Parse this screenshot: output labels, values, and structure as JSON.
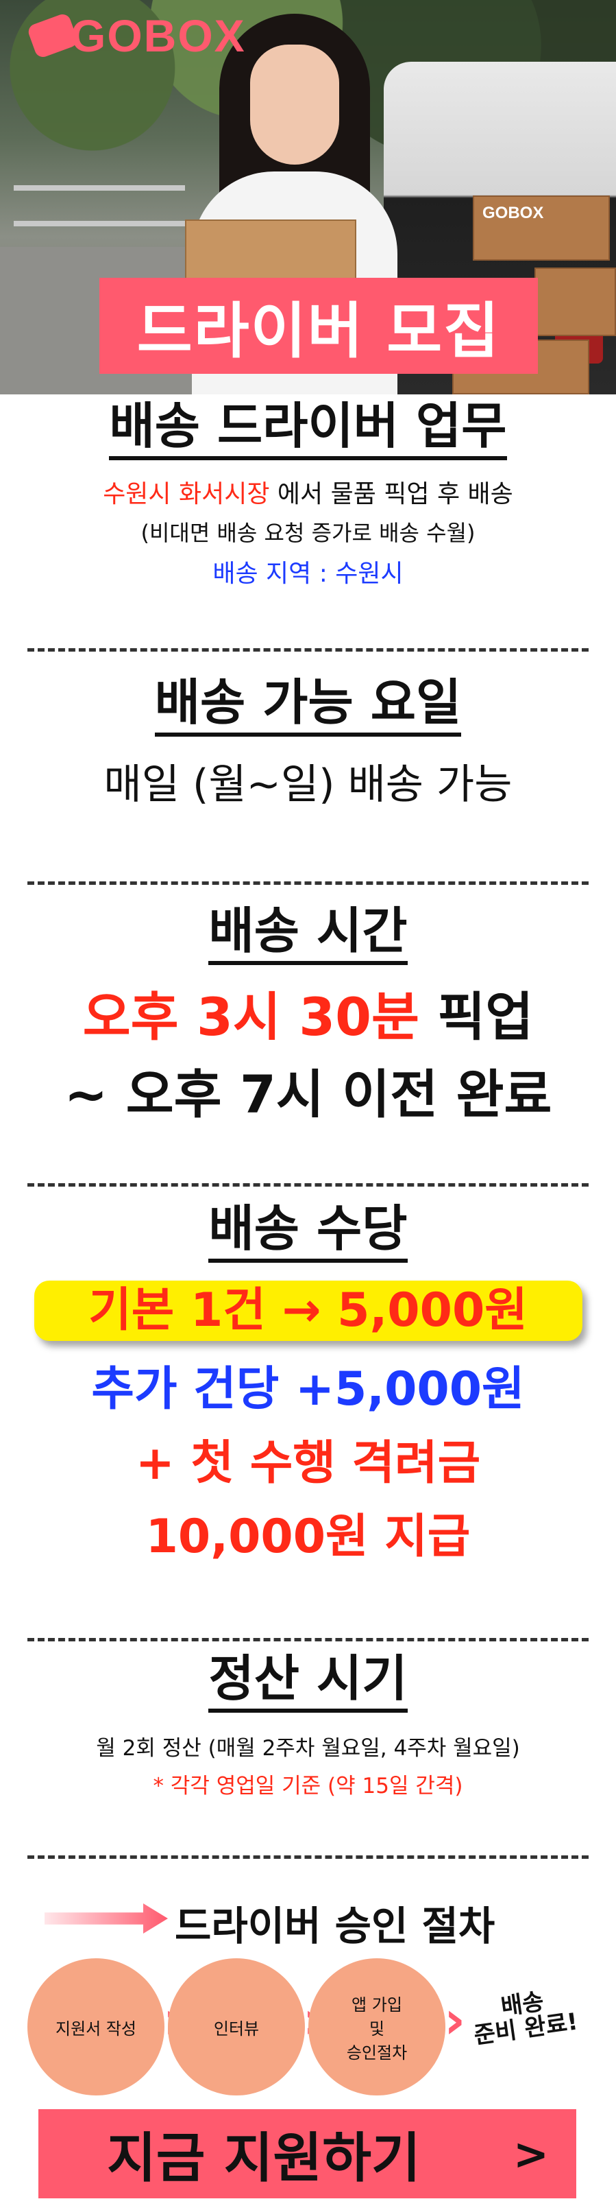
{
  "brand": {
    "name": "GOBOX"
  },
  "hero": {
    "banner": "드라이버 모집",
    "box_label": "GOBOX"
  },
  "duty": {
    "title": "배송 드라이버 업무",
    "line1_highlight": "수원시 화서시장",
    "line1_rest": " 에서  물품 픽업 후 배송",
    "line2": "(비대면 배송 요청 증가로 배송 수월)",
    "line3": "배송 지역 : 수원시"
  },
  "days": {
    "title": "배송 가능 요일",
    "line1": "매일 (월~일) 배송 가능"
  },
  "time": {
    "title": "배송 시간",
    "line1_highlight": "오후 3시 30분",
    "line1_rest": " 픽업",
    "line2": "~ 오후 7시 이전 완료"
  },
  "pay": {
    "title": "배송 수당",
    "base": "기본 1건 → 5,000원",
    "extra": "추가 건당 +5,000원",
    "bonus1": "+ 첫 수행 격려금",
    "bonus2": "10,000원 지급"
  },
  "settle": {
    "title": "정산 시기",
    "line1": "월 2회 정산 (매월 2주차 월요일, 4주차 월요일)",
    "line2": "* 각각 영업일 기준 (약 15일 간격)"
  },
  "process": {
    "title": "드라이버 승인 절차",
    "steps": [
      "지원서 작성",
      "인터뷰",
      "앱 가입\n및\n승인절차"
    ],
    "final": "배송\n준비 완료!"
  },
  "cta": {
    "label": "지금 지원하기",
    "arrow": ">"
  },
  "colors": {
    "accent": "#ff5a6e",
    "red": "#ff2a17",
    "blue": "#1c3bff",
    "yellow": "#ffef00",
    "step": "#f6a684"
  }
}
